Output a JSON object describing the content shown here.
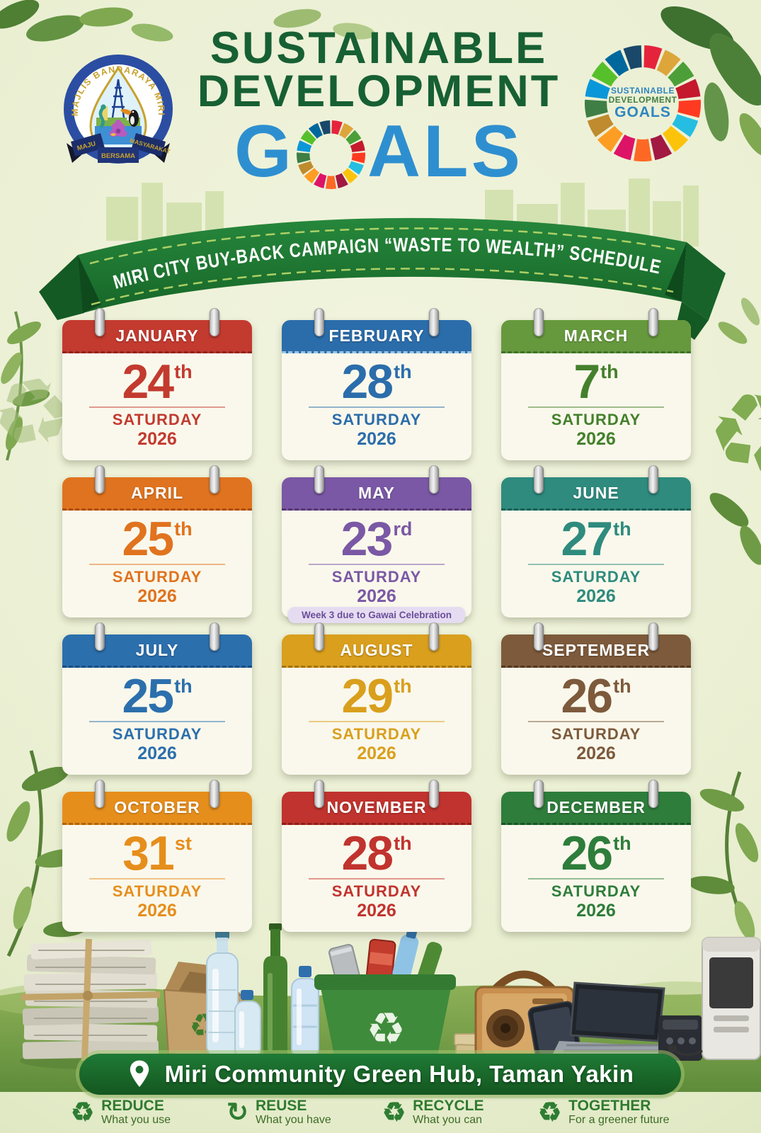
{
  "org_logo": {
    "ring_text": "MAJLIS BANDARAYA MIRI",
    "motto": [
      "MAJU",
      "BERSAMA",
      "MASYARAKAT"
    ]
  },
  "title": {
    "line1": "SUSTAINABLE",
    "line2": "DEVELOPMENT",
    "goals_g": "G",
    "goals_rest": "ALS"
  },
  "sdg_badge": {
    "line1": "SUSTAINABLE",
    "line2": "DEVELOPMENT",
    "line3": "GOALS"
  },
  "banner": {
    "text": "MIRI CITY BUY-BACK CAMPAIGN “WASTE TO WEALTH” SCHEDULE"
  },
  "months": [
    {
      "name": "JANUARY",
      "day": "24",
      "ordinal": "th",
      "weekday": "SATURDAY",
      "year": "2026",
      "color": "#C33A2F",
      "stitch": "#8F241E"
    },
    {
      "name": "FEBRUARY",
      "day": "28",
      "ordinal": "th",
      "weekday": "SATURDAY",
      "year": "2026",
      "color": "#2B6DAB",
      "stitch": "#9CC4E4"
    },
    {
      "name": "MARCH",
      "day": "7",
      "ordinal": "th",
      "weekday": "SATURDAY",
      "year": "2026",
      "color": "#66993D",
      "stitch": "#3F7328",
      "text": "#44802C"
    },
    {
      "name": "APRIL",
      "day": "25",
      "ordinal": "th",
      "weekday": "SATURDAY",
      "year": "2026",
      "color": "#E0731F",
      "stitch": "#A94F0F"
    },
    {
      "name": "MAY",
      "day": "23",
      "ordinal": "rd",
      "weekday": "SATURDAY",
      "year": "2026",
      "color": "#7A58A5",
      "stitch": "#55396F",
      "note": "Week 3 due to Gawai Celebration",
      "note_bg": "#E6DCF2",
      "note_color": "#6B4E98"
    },
    {
      "name": "JUNE",
      "day": "27",
      "ordinal": "th",
      "weekday": "SATURDAY",
      "year": "2026",
      "color": "#2E8B7E",
      "stitch": "#1C5F55"
    },
    {
      "name": "JULY",
      "day": "25",
      "ordinal": "th",
      "weekday": "SATURDAY",
      "year": "2026",
      "color": "#2C6FAD",
      "stitch": "#1A4E80"
    },
    {
      "name": "AUGUST",
      "day": "29",
      "ordinal": "th",
      "weekday": "SATURDAY",
      "year": "2026",
      "color": "#D99F1D",
      "stitch": "#A37310"
    },
    {
      "name": "SEPTEMBER",
      "day": "26",
      "ordinal": "th",
      "weekday": "SATURDAY",
      "year": "2026",
      "color": "#7D5A3C",
      "stitch": "#55381F"
    },
    {
      "name": "OCTOBER",
      "day": "31",
      "ordinal": "st",
      "weekday": "SATURDAY",
      "year": "2026",
      "color": "#E68E1C",
      "stitch": "#AD650C"
    },
    {
      "name": "NOVEMBER",
      "day": "28",
      "ordinal": "th",
      "weekday": "SATURDAY",
      "year": "2026",
      "color": "#C1332E",
      "stitch": "#8C1F1B"
    },
    {
      "name": "DECEMBER",
      "day": "26",
      "ordinal": "th",
      "weekday": "SATURDAY",
      "year": "2026",
      "color": "#2E7D3B",
      "stitch": "#1B5526"
    }
  ],
  "location": {
    "icon": "location-pin-icon",
    "text": "Miri Community Green Hub, Taman Yakin"
  },
  "footer": [
    {
      "icon": "recycle-icon",
      "glyph": "♻",
      "title": "REDUCE",
      "subtitle": "What you use"
    },
    {
      "icon": "reuse-icon",
      "glyph": "↻",
      "title": "REUSE",
      "subtitle": "What you have"
    },
    {
      "icon": "recycle-icon",
      "glyph": "♻",
      "title": "RECYCLE",
      "subtitle": "What you can"
    },
    {
      "icon": "recycle-icon",
      "glyph": "♻",
      "title": "TOGETHER",
      "subtitle": "For a greener future"
    }
  ],
  "colors": {
    "title_green": "#176034",
    "title_blue": "#2E8FD0",
    "ribbon_green": "#1F7A33",
    "pill_green": "#1C6B2E",
    "footer_green": "#2E7D32",
    "background": "#EDF1DA"
  },
  "sdg_colors": [
    "#E5243B",
    "#DDA63A",
    "#4C9F38",
    "#C5192D",
    "#FF3A21",
    "#26BDE2",
    "#FCC30B",
    "#A21942",
    "#FD6925",
    "#DD1367",
    "#FD9D24",
    "#BF8B2E",
    "#3F7E44",
    "#0A97D9",
    "#56C02B",
    "#00689D",
    "#19486A"
  ]
}
